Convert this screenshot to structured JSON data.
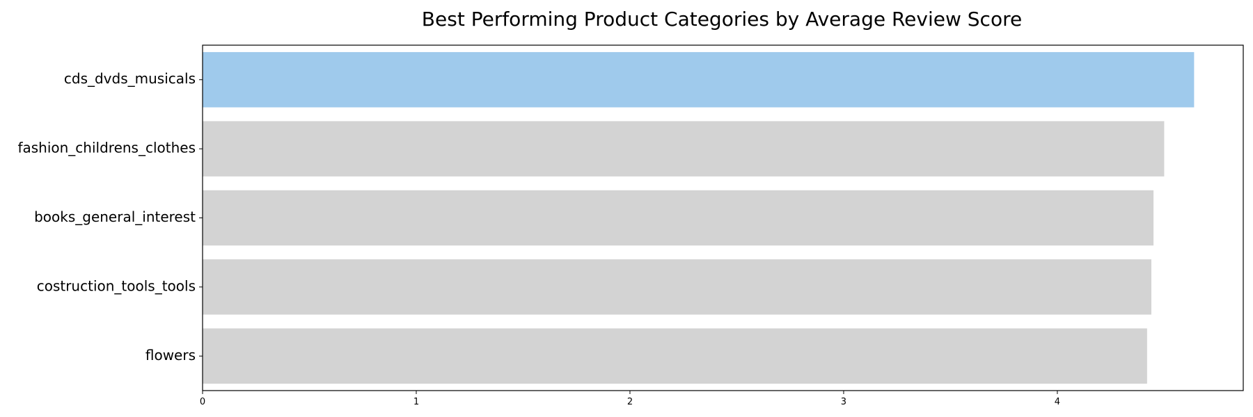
{
  "chart_data": {
    "type": "bar",
    "orientation": "horizontal",
    "title": "Best Performing Product Categories by Average Review Score",
    "xlabel": "",
    "ylabel": "",
    "categories": [
      "cds_dvds_musicals",
      "fashion_childrens_clothes",
      "books_general_interest",
      "costruction_tools_tools",
      "flowers"
    ],
    "values": [
      4.64,
      4.5,
      4.45,
      4.44,
      4.42
    ],
    "xlim": [
      0,
      4.87
    ],
    "xticks": [
      0,
      1,
      2,
      3,
      4
    ],
    "grid": false,
    "colors": {
      "highlight": "#9fcaec",
      "default": "#d3d3d3"
    }
  }
}
